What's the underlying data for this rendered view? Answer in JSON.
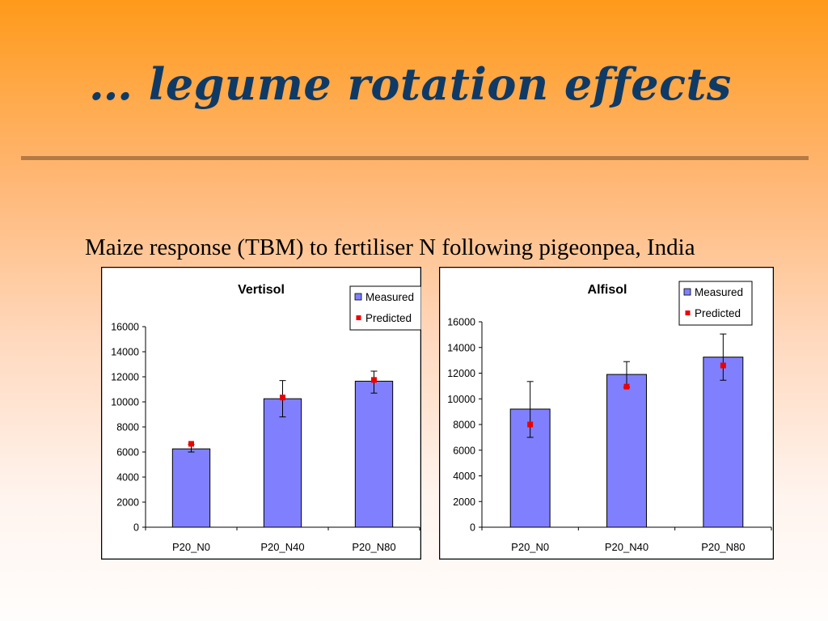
{
  "slide": {
    "title": "… legume rotation effects",
    "subtitle": "Maize response (TBM) to fertiliser N following pigeonpea, India"
  },
  "chart_data": [
    {
      "type": "bar",
      "title": "Vertisol",
      "categories": [
        "P20_N0",
        "P20_N40",
        "P20_N80"
      ],
      "series": [
        {
          "name": "Measured",
          "kind": "bar",
          "color": "#8080ff",
          "values": [
            6250,
            10250,
            11650
          ],
          "error_low": [
            6000,
            8800,
            10700
          ],
          "error_high": [
            6600,
            11700,
            12450
          ]
        },
        {
          "name": "Predicted",
          "kind": "point",
          "color": "#ee0000",
          "values": [
            6650,
            10350,
            11750
          ]
        }
      ],
      "ylim": [
        0,
        16000
      ],
      "yticks": [
        0,
        2000,
        4000,
        6000,
        8000,
        10000,
        12000,
        14000,
        16000
      ],
      "grid": false,
      "legend": "top-right"
    },
    {
      "type": "bar",
      "title": "Alfisol",
      "categories": [
        "P20_N0",
        "P20_N40",
        "P20_N80"
      ],
      "series": [
        {
          "name": "Measured",
          "kind": "bar",
          "color": "#8080ff",
          "values": [
            9200,
            11900,
            13250
          ],
          "error_low": [
            7000,
            10900,
            11450
          ],
          "error_high": [
            11350,
            12900,
            15050
          ]
        },
        {
          "name": "Predicted",
          "kind": "point",
          "color": "#ee0000",
          "values": [
            8000,
            10950,
            12600
          ]
        }
      ],
      "ylim": [
        0,
        16000
      ],
      "yticks": [
        0,
        2000,
        4000,
        6000,
        8000,
        10000,
        12000,
        14000,
        16000
      ],
      "grid": false,
      "legend": "top-right"
    }
  ]
}
